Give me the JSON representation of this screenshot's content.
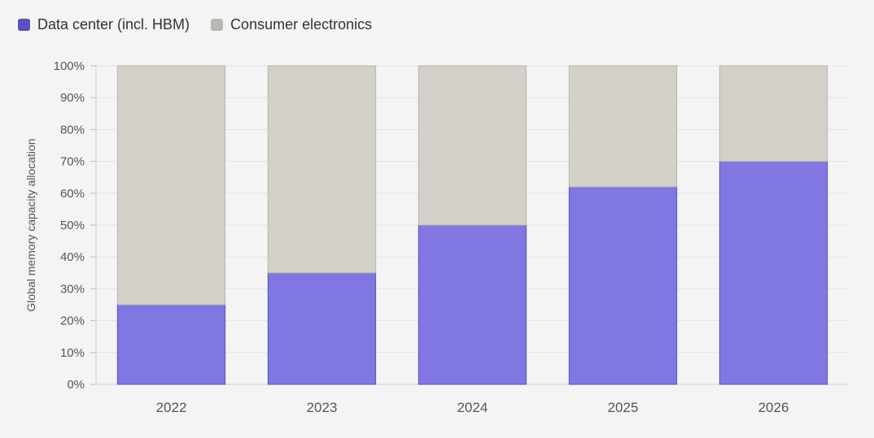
{
  "chart_data": {
    "type": "bar",
    "stacked": true,
    "categories": [
      "2022",
      "2023",
      "2024",
      "2025",
      "2026"
    ],
    "series": [
      {
        "name": "Data center (incl. HBM)",
        "values": [
          25,
          35,
          50,
          62,
          70
        ],
        "color": "#8078e0"
      },
      {
        "name": "Consumer electronics",
        "values": [
          75,
          65,
          50,
          38,
          30
        ],
        "color": "#d3d0c9"
      }
    ],
    "ylabel": "Global memory capacity allocation",
    "xlabel": "",
    "ylim": [
      0,
      100
    ],
    "y_ticks": [
      "0%",
      "10%",
      "20%",
      "30%",
      "40%",
      "50%",
      "60%",
      "70%",
      "80%",
      "90%",
      "100%"
    ],
    "legend_position": "top-left",
    "grid": true,
    "legend_swatch_colors": [
      "#5a4fbd",
      "#bbb8b0"
    ]
  }
}
